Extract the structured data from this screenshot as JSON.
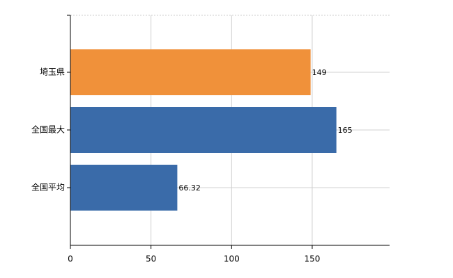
{
  "chart_data": {
    "type": "bar",
    "orientation": "horizontal",
    "categories": [
      "埼玉県",
      "全国最大",
      "全国平均"
    ],
    "values": [
      149,
      165,
      66.32
    ],
    "colors": [
      "#f0913a",
      "#3a6ba9",
      "#3a6ba9"
    ],
    "xlim": [
      0,
      198
    ],
    "xticks": [
      0,
      50,
      100,
      150
    ],
    "grid": true
  }
}
